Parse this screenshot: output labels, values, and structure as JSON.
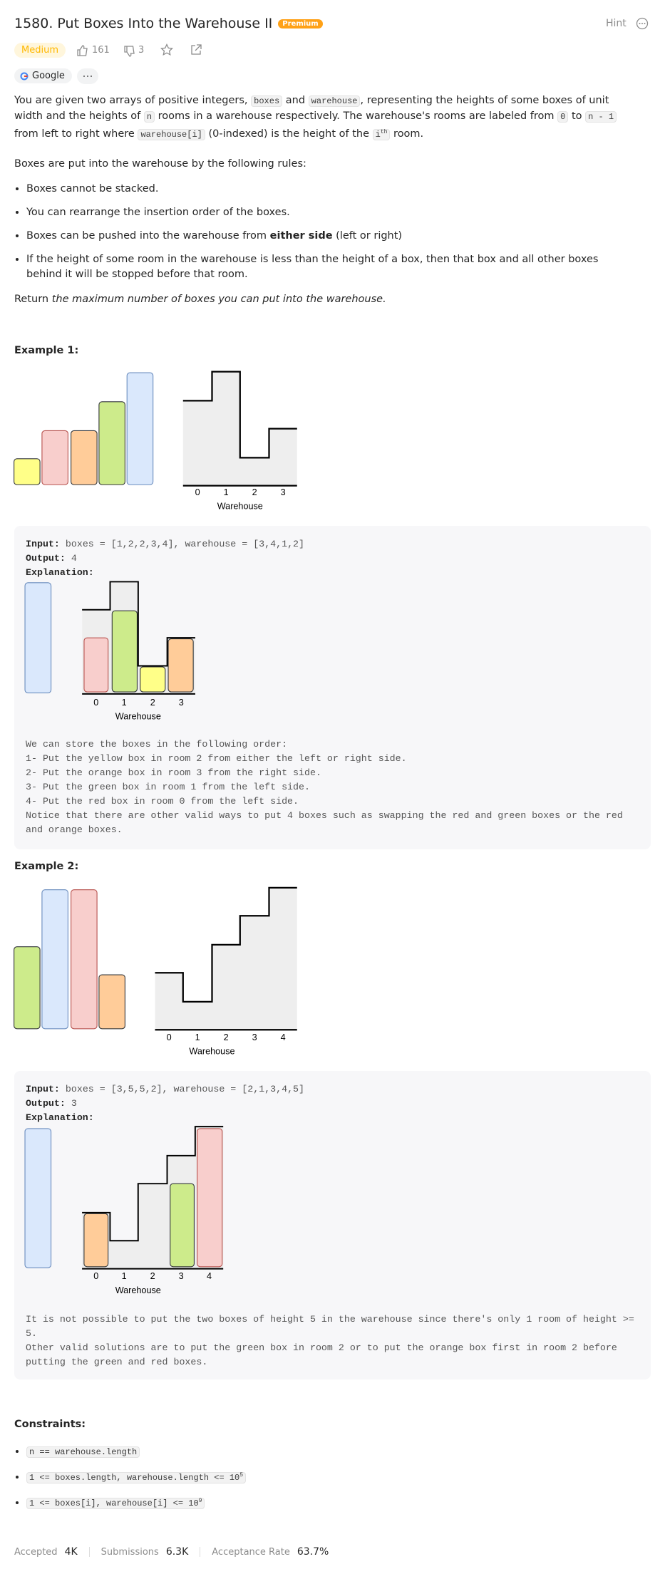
{
  "header": {
    "title": "1580. Put Boxes Into the Warehouse II",
    "badge": "Premium",
    "hint": "Hint"
  },
  "meta": {
    "difficulty": "Medium",
    "likes": "161",
    "dislikes": "3"
  },
  "tags": [
    "Google"
  ],
  "description": {
    "p1": [
      "You are given two arrays of positive integers, ",
      "boxes",
      " and ",
      "warehouse",
      ", representing the heights of some boxes of unit width and the heights of ",
      "n",
      " rooms in a warehouse respectively. The warehouse's rooms are labeled from ",
      "0",
      " to ",
      "n - 1",
      " from left to right where ",
      "warehouse[i]",
      " (0-indexed) is the height of the ",
      "i",
      "th",
      " room."
    ],
    "p2": "Boxes are put into the warehouse by the following rules:",
    "rules": [
      "Boxes cannot be stacked.",
      "You can rearrange the insertion order of the boxes.",
      [
        "Boxes can be pushed into the warehouse from ",
        "either side",
        " (left or right)"
      ],
      "If the height of some room in the warehouse is less than the height of a box, then that box and all other boxes behind it will be stopped before that room."
    ],
    "p3": [
      "Return ",
      "the maximum number of boxes you can put into the warehouse."
    ]
  },
  "examples": [
    {
      "heading": "Example 1:",
      "figure": {
        "labels": [
          "0",
          "1",
          "2",
          "3"
        ],
        "caption": "Warehouse"
      },
      "input_label": "Input:",
      "input": "boxes = [1,2,2,3,4], warehouse = [3,4,1,2]",
      "output_label": "Output:",
      "output": "4",
      "explanation_label": "Explanation:",
      "explanation_figure": {
        "labels": [
          "0",
          "1",
          "2",
          "3"
        ],
        "caption": "Warehouse"
      },
      "explanation": [
        "We can store the boxes in the following order:",
        "1- Put the yellow box in room 2 from either the left or right side.",
        "2- Put the orange box in room 3 from the right side.",
        "3- Put the green box in room 1 from the left side.",
        "4- Put the red box in room 0 from the left side.",
        "Notice that there are other valid ways to put 4 boxes such as swapping the red and green boxes or the red and orange boxes."
      ]
    },
    {
      "heading": "Example 2:",
      "figure": {
        "labels": [
          "0",
          "1",
          "2",
          "3",
          "4"
        ],
        "caption": "Warehouse"
      },
      "input_label": "Input:",
      "input": "boxes = [3,5,5,2], warehouse = [2,1,3,4,5]",
      "output_label": "Output:",
      "output": "3",
      "explanation_label": "Explanation:",
      "explanation_figure": {
        "labels": [
          "0",
          "1",
          "2",
          "3",
          "4"
        ],
        "caption": "Warehouse"
      },
      "explanation": [
        "It is not possible to put the two boxes of height 5 in the warehouse since there's only 1 room of height >= 5.",
        "Other valid solutions are to put the green box in room 2 or to put the orange box first in room 2 before putting the green and red boxes."
      ]
    }
  ],
  "constraints": {
    "heading": "Constraints:",
    "items": [
      [
        "n == warehouse.length"
      ],
      [
        "1 <= boxes.length, warehouse.length <= 10",
        "5"
      ],
      [
        "1 <= boxes[i], warehouse[i] <= 10",
        "9"
      ]
    ]
  },
  "stats": {
    "accepted_label": "Accepted",
    "accepted": "4K",
    "submissions_label": "Submissions",
    "submissions": "6.3K",
    "rate_label": "Acceptance Rate",
    "rate": "63.7%"
  }
}
